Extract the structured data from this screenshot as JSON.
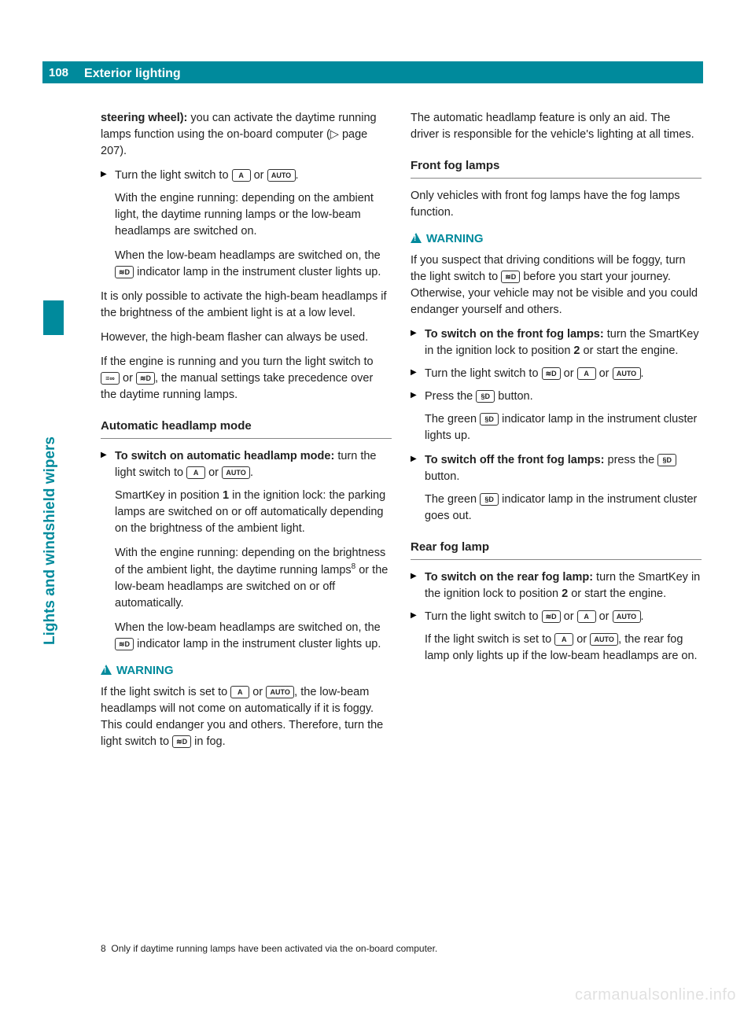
{
  "page_number": "108",
  "header_title": "Exterior lighting",
  "side_tab_label": "Lights and windshield wipers",
  "symbols": {
    "A": "A",
    "AUTO": "AUTO",
    "lowbeam": "≋D",
    "parking": "≡∞",
    "fog": "§D"
  },
  "left": {
    "p1_bold": "steering wheel):",
    "p1": " you can activate the daytime running lamps function using the on-board computer (▷ page 207).",
    "s1a": "Turn the light switch to ",
    "s1b": " or ",
    "s1c": ".",
    "s1d": "With the engine running: depending on the ambient light, the daytime running lamps or the low-beam headlamps are switched on.",
    "s1e": "When the low-beam headlamps are switched on, the ",
    "s1f": " indicator lamp in the instrument cluster lights up.",
    "p2": "It is only possible to activate the high-beam headlamps if the brightness of the ambient light is at a low level.",
    "p3": "However, the high-beam flasher can always be used.",
    "p4a": "If the engine is running and you turn the light switch to ",
    "p4b": " or ",
    "p4c": ", the manual settings take precedence over the daytime running lamps.",
    "sub1": "Automatic headlamp mode",
    "s2_bold": "To switch on automatic headlamp mode:",
    "s2a": " turn the light switch to ",
    "s2b": " or ",
    "s2c": ".",
    "s2d_a": "SmartKey in position ",
    "s2d_b": " in the ignition lock: the parking lamps are switched on or off automatically depending on the brightness of the ambient light.",
    "s2d_num": "1",
    "s2e": "With the engine running: depending on the brightness of the ambient light, the daytime running lamps",
    "s2e_fn": "8",
    "s2e2": " or the low-beam headlamps are switched on or off automatically.",
    "s2f": "When the low-beam headlamps are switched on, the ",
    "s2g": " indicator lamp in the instrument cluster lights up.",
    "warn1_title": "WARNING",
    "warn1a": "If the light switch is set to ",
    "warn1b": " or ",
    "warn1c": ", the low-beam headlamps will not come on automatically if it is foggy. This could endanger you and others. Therefore, turn the light switch to ",
    "warn1d": " in fog."
  },
  "right": {
    "note1": "The automatic headlamp feature is only an aid. The driver is responsible for the vehicle's lighting at all times.",
    "sub2": "Front fog lamps",
    "p5": "Only vehicles with front fog lamps have the fog lamps function.",
    "warn2_title": "WARNING",
    "warn2a": "If you suspect that driving conditions will be foggy, turn the light switch to ",
    "warn2b": " before you start your journey. Otherwise, your vehicle may not be visible and you could endanger yourself and others.",
    "s3_bold": "To switch on the front fog lamps:",
    "s3a_a": " turn the SmartKey in the ignition lock to position ",
    "s3a_num": "2",
    "s3a_b": " or start the engine.",
    "s4a": "Turn the light switch to ",
    "s4b": " or ",
    "s4c": " or ",
    "s4d": ".",
    "s5a": "Press the ",
    "s5b": " button.",
    "s5c": "The green ",
    "s5d": " indicator lamp in the instrument cluster lights up.",
    "s6_bold": "To switch off the front fog lamps:",
    "s6a": "  press the ",
    "s6b": " button.",
    "s6c": "The green ",
    "s6d": " indicator lamp in the instrument cluster goes out.",
    "sub3": "Rear fog lamp",
    "s7_bold": "To switch on the rear fog lamp:",
    "s7a_a": " turn the SmartKey in the ignition lock to position ",
    "s7a_num": "2",
    "s7a_b": " or start the engine.",
    "s8a": "Turn the light switch to ",
    "s8b": " or ",
    "s8c": " or ",
    "s8d": ".",
    "s8e": "If the light switch is set to ",
    "s8f": " or ",
    "s8g": ", the rear fog lamp only lights up if the low-beam headlamps are on."
  },
  "footnote_num": "8",
  "footnote": "Only if daytime running lamps have been activated via the on-board computer.",
  "watermark": "carmanualsonline.info",
  "colors": {
    "accent": "#008a9c",
    "text": "#222222",
    "bg": "#ffffff"
  }
}
